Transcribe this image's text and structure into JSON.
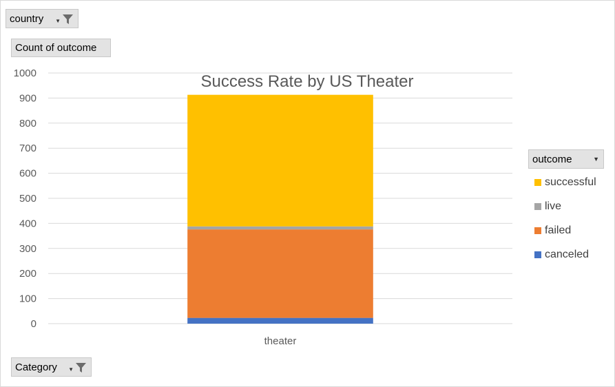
{
  "filters": {
    "country_label": "country",
    "count_label": "Count of outcome",
    "category_label": "Category",
    "outcome_label": "outcome"
  },
  "chart_data": {
    "type": "bar",
    "stacked": true,
    "title": "Success Rate by US Theater",
    "categories": [
      "theater"
    ],
    "ylim": [
      0,
      1000
    ],
    "yticks": [
      0,
      100,
      200,
      300,
      400,
      500,
      600,
      700,
      800,
      900,
      1000
    ],
    "grid": true,
    "legend_position": "right",
    "series": [
      {
        "name": "canceled",
        "color": "#4472c4",
        "values": [
          23
        ]
      },
      {
        "name": "failed",
        "color": "#ed7d31",
        "values": [
          353
        ]
      },
      {
        "name": "live",
        "color": "#a5a5a5",
        "values": [
          12
        ]
      },
      {
        "name": "successful",
        "color": "#ffc000",
        "values": [
          525
        ]
      }
    ],
    "legend_order": [
      "successful",
      "live",
      "failed",
      "canceled"
    ]
  }
}
